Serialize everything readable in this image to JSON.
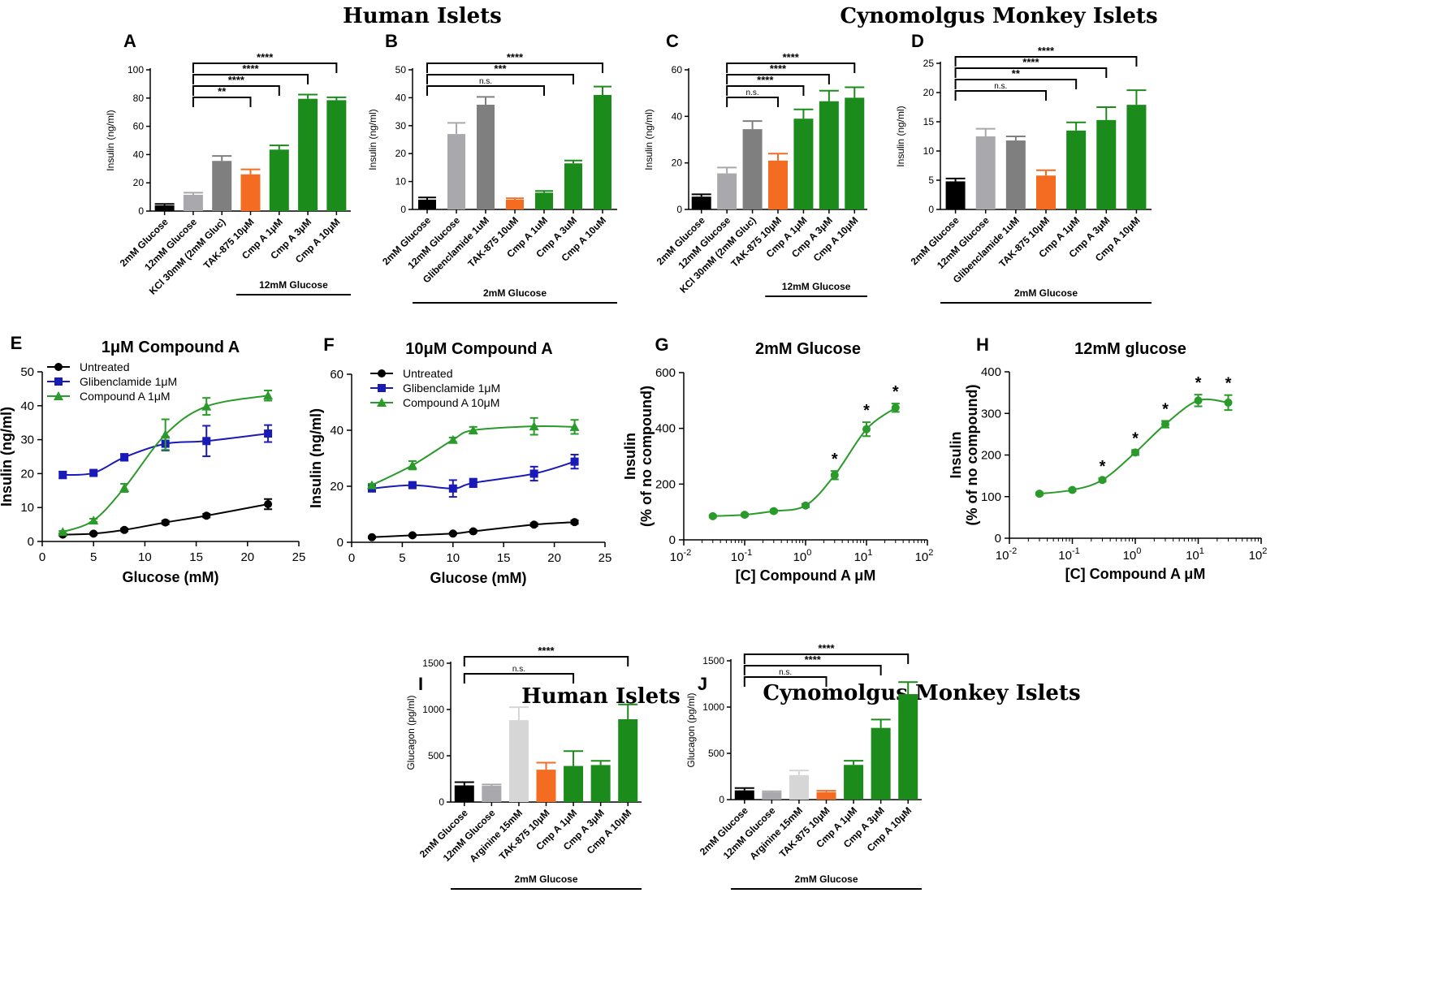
{
  "headings": {
    "top_left": "Human Islets",
    "top_right": "Cynomolgus Monkey Islets",
    "bottom_left": "Human Islets",
    "bottom_right": "Cynomolgus Monkey Islets"
  },
  "colors": {
    "black": "#000000",
    "light_gray": "#a9a9ad",
    "gray": "#7f7f7f",
    "pale_gray": "#d6d6d6",
    "orange": "#f36c21",
    "green": "#1b8c1b",
    "blue": "#1a1ab8",
    "green_curve": "#2a9a2a"
  },
  "chart_data": [
    {
      "panel": "A",
      "type": "bar",
      "ylabel": "Insulin (ng/ml)",
      "ylim": [
        0,
        100
      ],
      "yticks": [
        0,
        20,
        40,
        60,
        80,
        100
      ],
      "categories": [
        "2mM Glucose",
        "12mM Glucose",
        "KCl 30mM (2mM Gluc)",
        "TAK-875 10μM",
        "Cmp A 1μM",
        "Cmp A 3μM",
        "Cmp A 10μM"
      ],
      "values": [
        4,
        11.5,
        35.5,
        26,
        43.5,
        79.5,
        78.5
      ],
      "errors": [
        1,
        1.5,
        3.5,
        3.5,
        3,
        3,
        2
      ],
      "colors": [
        "black",
        "light_gray",
        "gray",
        "orange",
        "green",
        "green",
        "green"
      ],
      "group_label": "12mM Glucose",
      "group_range": [
        3,
        6
      ],
      "significance": [
        {
          "from": 1,
          "to": 3,
          "label": "**"
        },
        {
          "from": 1,
          "to": 4,
          "label": "****"
        },
        {
          "from": 1,
          "to": 5,
          "label": "****"
        },
        {
          "from": 1,
          "to": 6,
          "label": "****"
        }
      ]
    },
    {
      "panel": "B",
      "type": "bar",
      "ylabel": "Insulin (ng/ml)",
      "ylim": [
        0,
        50
      ],
      "yticks": [
        0,
        10,
        20,
        30,
        40,
        50
      ],
      "categories": [
        "2mM Glucose",
        "12mM Glucose",
        "Glibenclamide 1uM",
        "TAK-875 10uM",
        "Cmp A 1uM",
        "Cmp A 3uM",
        "Cmp A 10uM"
      ],
      "values": [
        3.5,
        27,
        37.5,
        3.5,
        6,
        16.5,
        41
      ],
      "errors": [
        0.8,
        4,
        2.8,
        0.5,
        0.6,
        1,
        3
      ],
      "colors": [
        "black",
        "light_gray",
        "gray",
        "orange",
        "green",
        "green",
        "green"
      ],
      "group_label": "2mM Glucose",
      "group_range": [
        0,
        6
      ],
      "significance": [
        {
          "from": 0,
          "to": 4,
          "label": "n.s."
        },
        {
          "from": 0,
          "to": 5,
          "label": "***"
        },
        {
          "from": 0,
          "to": 6,
          "label": "****"
        }
      ]
    },
    {
      "panel": "C",
      "type": "bar",
      "ylabel": "Insulin (ng/ml)",
      "ylim": [
        0,
        60
      ],
      "yticks": [
        0,
        20,
        40,
        60
      ],
      "categories": [
        "2mM Glucose",
        "12mM Glucose",
        "KCl 30mM (2mM Gluc)",
        "TAK-875 10μM",
        "Cmp A 1μM",
        "Cmp A 3μM",
        "Cmp A 10μM"
      ],
      "values": [
        5.5,
        15.5,
        34.5,
        21,
        39,
        46.5,
        48
      ],
      "errors": [
        1,
        2.5,
        3.5,
        3,
        4,
        4.5,
        4.5
      ],
      "colors": [
        "black",
        "light_gray",
        "gray",
        "orange",
        "green",
        "green",
        "green"
      ],
      "group_label": "12mM Glucose",
      "group_range": [
        3,
        6
      ],
      "significance": [
        {
          "from": 1,
          "to": 3,
          "label": "n.s."
        },
        {
          "from": 1,
          "to": 4,
          "label": "****"
        },
        {
          "from": 1,
          "to": 5,
          "label": "****"
        },
        {
          "from": 1,
          "to": 6,
          "label": "****"
        }
      ]
    },
    {
      "panel": "D",
      "type": "bar",
      "ylabel": "Insulin (ng/ml)",
      "ylim": [
        0,
        25
      ],
      "yticks": [
        0,
        5,
        10,
        15,
        20,
        25
      ],
      "categories": [
        "2mM Glucose",
        "12mM Glucose",
        "Glibenclamide 1uM",
        "TAK-875 10μM",
        "Cmp A 1μM",
        "Cmp A 3μM",
        "Cmp A 10μM"
      ],
      "values": [
        4.8,
        12.5,
        11.8,
        5.8,
        13.5,
        15.3,
        17.9
      ],
      "errors": [
        0.5,
        1.3,
        0.7,
        0.9,
        1.4,
        2.2,
        2.5
      ],
      "colors": [
        "black",
        "light_gray",
        "gray",
        "orange",
        "green",
        "green",
        "green"
      ],
      "group_label": "2mM Glucose",
      "group_range": [
        0,
        6
      ],
      "significance": [
        {
          "from": 0,
          "to": 3,
          "label": "n.s."
        },
        {
          "from": 0,
          "to": 4,
          "label": "**"
        },
        {
          "from": 0,
          "to": 5,
          "label": "****"
        },
        {
          "from": 0,
          "to": 6,
          "label": "****"
        }
      ]
    },
    {
      "panel": "E",
      "type": "line",
      "title": "1μM  Compound  A",
      "xlabel": "Glucose (mM)",
      "ylabel": "Insulin (ng/ml)",
      "xlim": [
        0,
        25
      ],
      "xticks": [
        0,
        5,
        10,
        15,
        20,
        25
      ],
      "ylim": [
        0,
        50
      ],
      "yticks": [
        0,
        10,
        20,
        30,
        40,
        50
      ],
      "series": [
        {
          "name": "Untreated",
          "marker": "circle",
          "color": "black",
          "x": [
            2,
            5,
            8,
            12,
            16,
            22
          ],
          "y": [
            2,
            2.3,
            3.4,
            5.6,
            7.6,
            11
          ],
          "err": [
            0.3,
            0.3,
            0.4,
            0.5,
            0.5,
            1.5
          ]
        },
        {
          "name": "Glibenclamide 1μM",
          "marker": "square",
          "color": "blue",
          "x": [
            2,
            5,
            8,
            12,
            16,
            22
          ],
          "y": [
            19.6,
            20.2,
            24.8,
            28.8,
            29.6,
            31.8
          ],
          "err": [
            1,
            0.6,
            1,
            2,
            4.5,
            2.5
          ]
        },
        {
          "name": "Compound A 1μM",
          "marker": "triangle",
          "color": "green_curve",
          "x": [
            2,
            5,
            8,
            12,
            16,
            22
          ],
          "y": [
            2.8,
            6.2,
            15.8,
            31.5,
            39.8,
            43
          ],
          "err": [
            0.3,
            0.5,
            1.2,
            4.5,
            2.5,
            1.5
          ]
        }
      ]
    },
    {
      "panel": "F",
      "type": "line",
      "title": "10μM  Compound  A",
      "xlabel": "Glucose (mM)",
      "ylabel": "Insulin (ng/ml)",
      "xlim": [
        0,
        25
      ],
      "xticks": [
        0,
        5,
        10,
        15,
        20,
        25
      ],
      "ylim": [
        0,
        60
      ],
      "yticks": [
        0,
        20,
        40,
        60
      ],
      "series": [
        {
          "name": "Untreated",
          "marker": "circle",
          "color": "black",
          "x": [
            2,
            6,
            10,
            12,
            18,
            22
          ],
          "y": [
            1.8,
            2.5,
            3.1,
            3.9,
            6.3,
            7.2
          ],
          "err": [
            0.3,
            0.3,
            0.3,
            0.4,
            0.5,
            0.6
          ]
        },
        {
          "name": "Glibenclamide 1μM",
          "marker": "square",
          "color": "blue",
          "x": [
            2,
            6,
            10,
            12,
            18,
            22
          ],
          "y": [
            19.2,
            20.4,
            19.2,
            21.2,
            24.5,
            28.8
          ],
          "err": [
            1,
            0.6,
            3,
            1.5,
            2.5,
            2.5
          ]
        },
        {
          "name": "Compound A 10μM",
          "marker": "triangle",
          "color": "green_curve",
          "x": [
            2,
            6,
            10,
            12,
            18,
            22
          ],
          "y": [
            20.4,
            27.5,
            36.6,
            40,
            41.4,
            41.2
          ],
          "err": [
            0.5,
            1.5,
            0.8,
            1.2,
            3,
            2.5
          ]
        }
      ]
    },
    {
      "panel": "G",
      "type": "scatter",
      "title": "2mM Glucose",
      "xlabel": "[C] Compound A μM",
      "ylabel_line1": "Insulin",
      "ylabel_line2": "(% of no compound)",
      "xscale": "log",
      "xlim": [
        0.01,
        100
      ],
      "ylim": [
        0,
        600
      ],
      "yticks": [
        0,
        200,
        400,
        600
      ],
      "series": [
        {
          "name": "Compound A",
          "marker": "circle",
          "color": "green_curve",
          "x": [
            0.03,
            0.1,
            0.3,
            1,
            3,
            10,
            30
          ],
          "y": [
            85,
            90,
            103,
            123,
            232,
            397,
            474
          ],
          "err": [
            4,
            4,
            5,
            6,
            15,
            25,
            15
          ],
          "stars": [
            false,
            false,
            false,
            false,
            true,
            true,
            true
          ]
        }
      ]
    },
    {
      "panel": "H",
      "type": "scatter",
      "title": "12mM glucose",
      "xlabel": "[C] Compound A μM",
      "ylabel_line1": "Insulin",
      "ylabel_line2": "(% of no compound)",
      "xscale": "log",
      "xlim": [
        0.01,
        100
      ],
      "ylim": [
        0,
        400
      ],
      "yticks": [
        0,
        100,
        200,
        300,
        400
      ],
      "series": [
        {
          "name": "Compound A",
          "marker": "circle",
          "color": "green_curve",
          "x": [
            0.03,
            0.1,
            0.3,
            1,
            3,
            10,
            30
          ],
          "y": [
            107,
            116,
            140,
            206,
            274,
            331,
            326
          ],
          "err": [
            3,
            3,
            4,
            6,
            8,
            14,
            18
          ],
          "stars": [
            false,
            false,
            true,
            true,
            true,
            true,
            true
          ]
        }
      ]
    },
    {
      "panel": "I",
      "type": "bar",
      "ylabel": "Glucagon (pg/ml)",
      "ylim": [
        0,
        1500
      ],
      "yticks": [
        0,
        500,
        1000,
        1500
      ],
      "categories": [
        "2mM Glucose",
        "12mM Glucose",
        "Arginine 15mM",
        "TAK-875 10μM",
        "Cmp A 1μM",
        "Cmp A 3μM",
        "Cmp A 10μM"
      ],
      "values": [
        180,
        175,
        885,
        350,
        390,
        400,
        895
      ],
      "errors": [
        35,
        15,
        140,
        75,
        160,
        45,
        160
      ],
      "colors": [
        "black",
        "light_gray",
        "pale_gray",
        "orange",
        "green",
        "green",
        "green"
      ],
      "group_label": "2mM Glucose",
      "group_range": [
        0,
        6
      ],
      "significance": [
        {
          "from": 0,
          "to": 4,
          "label": "n.s."
        },
        {
          "from": 0,
          "to": 6,
          "label": "****"
        }
      ]
    },
    {
      "panel": "J",
      "type": "bar",
      "ylabel": "Glucagon (pg/ml)",
      "ylim": [
        0,
        1500
      ],
      "yticks": [
        0,
        500,
        1000,
        1500
      ],
      "categories": [
        "2mM Glucose",
        "12mM Glucose",
        "Arginine 15mM",
        "TAK-875 10μM",
        "Cmp A 1μM",
        "Cmp A 3μM",
        "Cmp A 10μM"
      ],
      "values": [
        100,
        80,
        265,
        80,
        375,
        775,
        1140
      ],
      "errors": [
        25,
        10,
        50,
        15,
        45,
        90,
        130
      ],
      "colors": [
        "black",
        "light_gray",
        "pale_gray",
        "orange",
        "green",
        "green",
        "green"
      ],
      "group_label": "2mM Glucose",
      "group_range": [
        0,
        6
      ],
      "significance": [
        {
          "from": 0,
          "to": 3,
          "label": "n.s."
        },
        {
          "from": 0,
          "to": 5,
          "label": "****"
        },
        {
          "from": 0,
          "to": 6,
          "label": "****"
        }
      ]
    }
  ]
}
